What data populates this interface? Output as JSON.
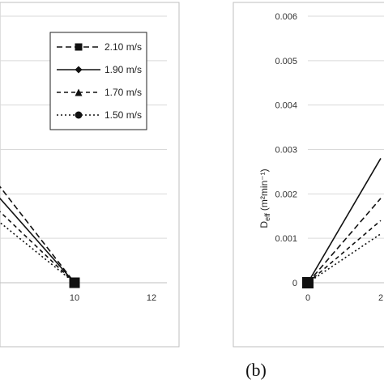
{
  "chart_data": [
    {
      "type": "line",
      "panel": "a",
      "xlim": [
        0,
        12
      ],
      "x_ticks": [
        "10",
        "12"
      ],
      "grid": true,
      "legend": "top-right",
      "series": [
        {
          "name": "2.10 m/s",
          "style": "dashed",
          "marker": "square",
          "x": [
            8,
            10
          ],
          "y": [
            0.00223,
            0
          ]
        },
        {
          "name": "1.90 m/s",
          "style": "solid",
          "marker": "diamond",
          "x": [
            8,
            10
          ],
          "y": [
            0.00196,
            0
          ]
        },
        {
          "name": "1.70 m/s",
          "style": "dashed-short",
          "marker": "triangle",
          "x": [
            8,
            10
          ],
          "y": [
            0.00165,
            0
          ]
        },
        {
          "name": "1.50 m/s",
          "style": "dotted",
          "marker": "circle",
          "x": [
            8,
            10
          ],
          "y": [
            0.0014,
            0
          ]
        }
      ],
      "subplot_label": ""
    },
    {
      "type": "line",
      "panel": "b",
      "ylabel": "D",
      "ylabel_sub": "eff",
      "ylabel_units": "(m²min⁻¹)",
      "ylim": [
        0,
        0.006
      ],
      "y_ticks": [
        "0.006",
        "0.005",
        "0.004",
        "0.003",
        "0.002",
        "0.001",
        "0"
      ],
      "x_ticks": [
        "0",
        "2"
      ],
      "grid": true,
      "series": [
        {
          "style": "solid",
          "x": [
            0,
            2.0
          ],
          "y": [
            0,
            0.0028
          ]
        },
        {
          "style": "dashed",
          "x": [
            0,
            2.0
          ],
          "y": [
            0,
            0.0019
          ]
        },
        {
          "style": "dashed-short",
          "x": [
            0,
            2.0
          ],
          "y": [
            0,
            0.0014
          ]
        },
        {
          "style": "dotted",
          "x": [
            0,
            2.0
          ],
          "y": [
            0,
            0.0011
          ]
        }
      ],
      "subplot_label": "(b)"
    }
  ],
  "colors": {
    "line": "#111111",
    "grid": "#d9d9d9",
    "frame": "#bfbfbf"
  }
}
